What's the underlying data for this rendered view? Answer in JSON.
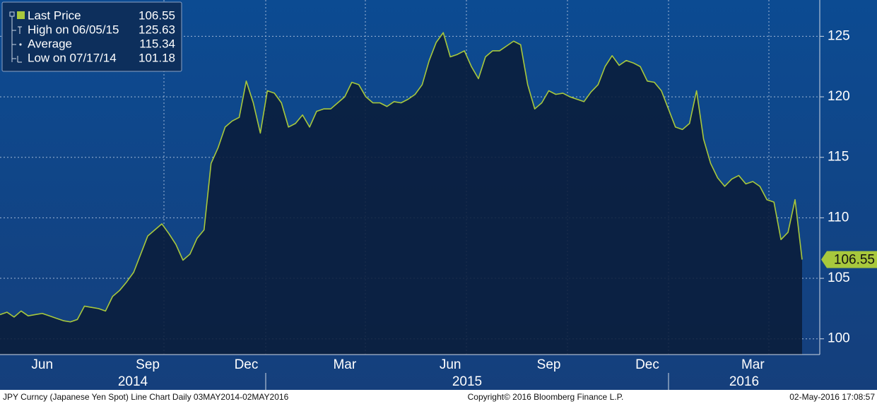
{
  "chart_data": {
    "type": "area-line",
    "legend": [
      {
        "label": "Last Price",
        "value": 106.55
      },
      {
        "label": "High on 06/05/15",
        "value": 125.63
      },
      {
        "label": "Average",
        "value": 115.34
      },
      {
        "label": "Low on 07/17/14",
        "value": 101.18
      }
    ],
    "categories": [
      null,
      null,
      null,
      null,
      null,
      null,
      "Jun",
      null,
      null,
      null,
      null,
      null,
      null,
      null,
      null,
      null,
      null,
      null,
      null,
      null,
      null,
      "Sep",
      null,
      null,
      null,
      null,
      null,
      null,
      null,
      null,
      null,
      null,
      null,
      null,
      null,
      "Dec",
      null,
      null,
      null,
      null,
      null,
      null,
      null,
      null,
      null,
      null,
      null,
      null,
      null,
      "Mar",
      null,
      null,
      null,
      null,
      null,
      null,
      null,
      null,
      null,
      null,
      null,
      null,
      null,
      null,
      "Jun",
      null,
      null,
      null,
      null,
      null,
      null,
      null,
      null,
      null,
      null,
      null,
      null,
      null,
      "Sep",
      null,
      null,
      null,
      null,
      null,
      null,
      null,
      null,
      null,
      null,
      null,
      null,
      null,
      "Dec",
      null,
      null,
      null,
      null,
      null,
      null,
      null,
      null,
      null,
      null,
      null,
      null,
      null,
      null,
      "Mar",
      null,
      null,
      null,
      null,
      null,
      null,
      null
    ],
    "year_labels": [
      "2014",
      "2015",
      "2016"
    ],
    "series": [
      {
        "name": "Last Price",
        "color": "#a8c83c",
        "values": [
          102.0,
          102.2,
          101.8,
          102.3,
          101.9,
          102.0,
          102.1,
          101.9,
          101.7,
          101.5,
          101.4,
          101.6,
          102.7,
          102.6,
          102.5,
          102.3,
          103.5,
          104.0,
          104.7,
          105.5,
          107.0,
          108.5,
          109.0,
          109.5,
          108.7,
          107.8,
          106.5,
          107.0,
          108.3,
          109.0,
          114.5,
          115.8,
          117.5,
          118.0,
          118.3,
          121.3,
          119.5,
          117.0,
          120.5,
          120.3,
          119.5,
          117.5,
          117.8,
          118.5,
          117.5,
          118.8,
          119.0,
          119.0,
          119.5,
          120.0,
          121.2,
          121.0,
          120.0,
          119.5,
          119.5,
          119.2,
          119.6,
          119.5,
          119.8,
          120.2,
          121.0,
          123.0,
          124.5,
          125.3,
          123.3,
          123.5,
          123.8,
          122.5,
          121.5,
          123.3,
          123.8,
          123.8,
          124.2,
          124.6,
          124.3,
          121.0,
          119.0,
          119.5,
          120.5,
          120.2,
          120.3,
          120.0,
          119.8,
          119.6,
          120.4,
          121.0,
          122.5,
          123.4,
          122.6,
          123.0,
          122.8,
          122.5,
          121.3,
          121.2,
          120.5,
          119.0,
          117.5,
          117.3,
          117.8,
          120.5,
          116.5,
          114.5,
          113.3,
          112.6,
          113.2,
          113.5,
          112.8,
          113.0,
          112.6,
          111.5,
          111.3,
          108.2,
          108.8,
          111.5,
          106.55
        ]
      }
    ],
    "ylim": [
      98.7,
      128
    ],
    "yticks": [
      100,
      105,
      110,
      115,
      120,
      125
    ],
    "grid": true,
    "footer": {
      "description": "JPY Curncy (Japanese Yen Spot) Line Chart  Daily 03MAY2014-02MAY2016",
      "copyright": "Copyright© 2016 Bloomberg Finance L.P.",
      "timestamp": "02-May-2016 17:08:57"
    }
  }
}
